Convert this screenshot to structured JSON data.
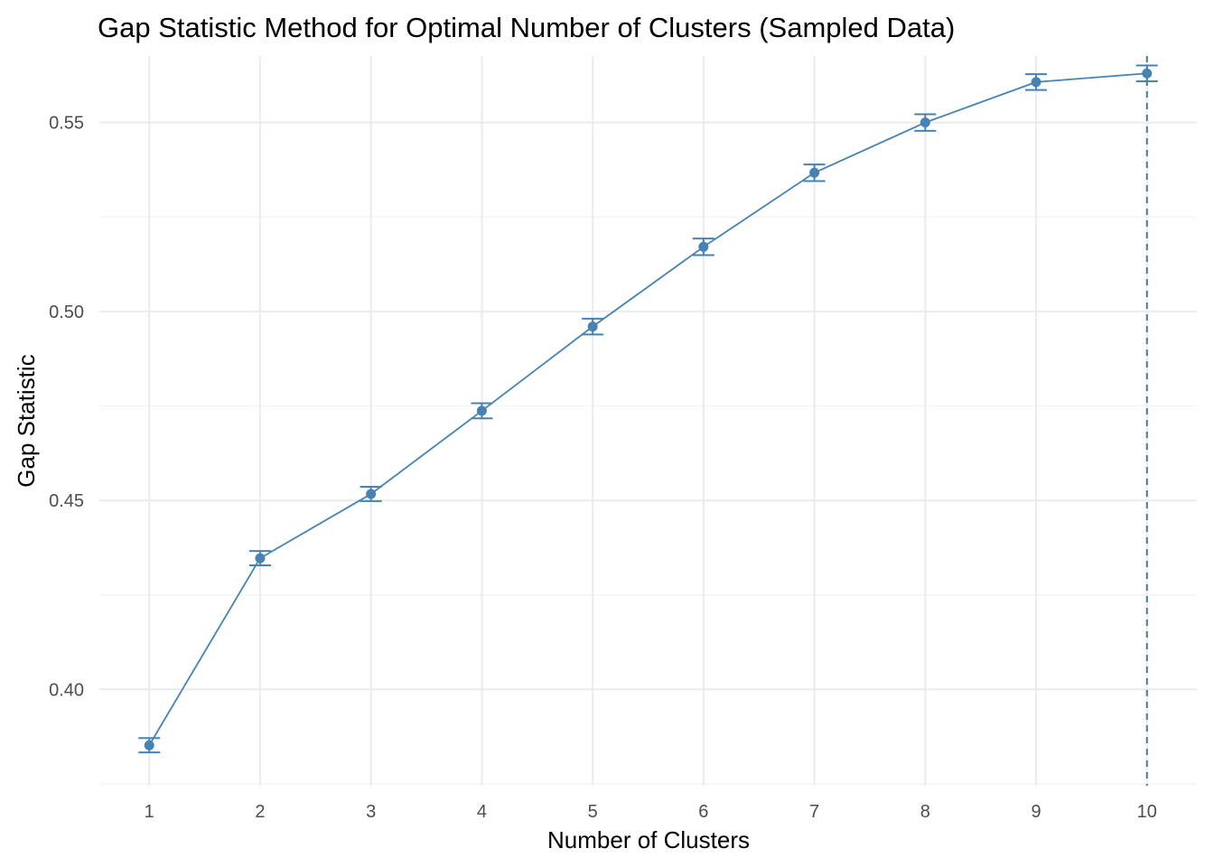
{
  "chart_data": {
    "type": "line",
    "title": "Gap Statistic Method for Optimal Number of Clusters (Sampled Data)",
    "xlabel": "Number of Clusters",
    "ylabel": "Gap Statistic",
    "x": [
      1,
      2,
      3,
      4,
      5,
      6,
      7,
      8,
      9,
      10
    ],
    "x_ticks": [
      "1",
      "2",
      "3",
      "4",
      "5",
      "6",
      "7",
      "8",
      "9",
      "10"
    ],
    "y_ticks": [
      "0.40",
      "0.45",
      "0.50",
      "0.55"
    ],
    "y_tick_values": [
      0.4,
      0.45,
      0.5,
      0.55
    ],
    "xlim": [
      0.55,
      10.45
    ],
    "ylim": [
      0.3745,
      0.5676
    ],
    "grid": true,
    "series": [
      {
        "values": [
          0.3852,
          0.4347,
          0.4517,
          0.4737,
          0.496,
          0.5171,
          0.5367,
          0.55,
          0.5607,
          0.563
        ],
        "error_low": [
          0.3833,
          0.4328,
          0.4498,
          0.4717,
          0.4939,
          0.5149,
          0.5345,
          0.5478,
          0.5586,
          0.5609
        ],
        "error_high": [
          0.3871,
          0.4366,
          0.4536,
          0.4757,
          0.4981,
          0.5193,
          0.5389,
          0.5522,
          0.5628,
          0.5651
        ],
        "color": "#4682b4"
      }
    ],
    "optimal_k": 10,
    "vline_color": "#4a7a9a"
  }
}
